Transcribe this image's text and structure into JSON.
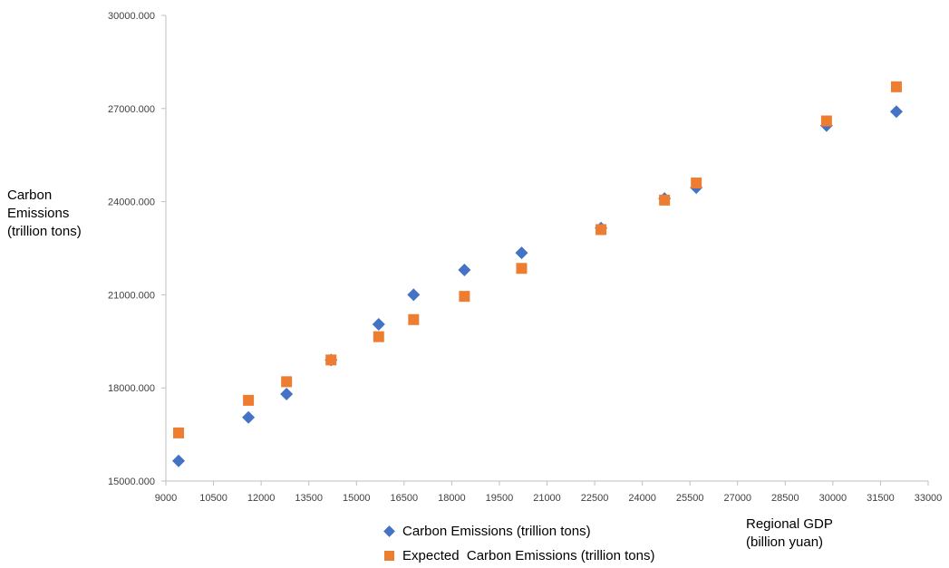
{
  "chart_data": {
    "type": "scatter",
    "title": "",
    "xlabel_lines": [
      "Regional GDP",
      "(billion yuan)"
    ],
    "ylabel_lines": [
      "Carbon",
      "Emissions",
      "(trillion tons)"
    ],
    "xlim": [
      9000,
      33000
    ],
    "ylim": [
      15000,
      30000
    ],
    "x_ticks": [
      "9000",
      "10500",
      "12000",
      "13500",
      "15000",
      "16500",
      "18000",
      "19500",
      "21000",
      "22500",
      "24000",
      "25500",
      "27000",
      "28500",
      "30000",
      "31500",
      "33000"
    ],
    "y_ticks": [
      "15000.000",
      "18000.000",
      "21000.000",
      "24000.000",
      "27000.000",
      "30000.000"
    ],
    "grid": false,
    "legend_position": "bottom",
    "series": [
      {
        "name": "Carbon Emissions (trillion tons)",
        "marker": "diamond",
        "color": "#4472C4",
        "points": [
          [
            9400,
            15650
          ],
          [
            11600,
            17050
          ],
          [
            12800,
            17800
          ],
          [
            14200,
            18900
          ],
          [
            15700,
            20050
          ],
          [
            16800,
            21000
          ],
          [
            18400,
            21800
          ],
          [
            20200,
            22350
          ],
          [
            22700,
            23150
          ],
          [
            24700,
            24100
          ],
          [
            25700,
            24450
          ],
          [
            29800,
            26450
          ],
          [
            32000,
            26900
          ]
        ]
      },
      {
        "name": "Expected  Carbon Emissions (trillion tons)",
        "marker": "square",
        "color": "#ED7D31",
        "points": [
          [
            9400,
            16550
          ],
          [
            11600,
            17600
          ],
          [
            12800,
            18200
          ],
          [
            14200,
            18900
          ],
          [
            15700,
            19650
          ],
          [
            16800,
            20200
          ],
          [
            18400,
            20950
          ],
          [
            20200,
            21850
          ],
          [
            22700,
            23100
          ],
          [
            24700,
            24050
          ],
          [
            25700,
            24600
          ],
          [
            29800,
            26600
          ],
          [
            32000,
            27700
          ]
        ]
      }
    ]
  }
}
